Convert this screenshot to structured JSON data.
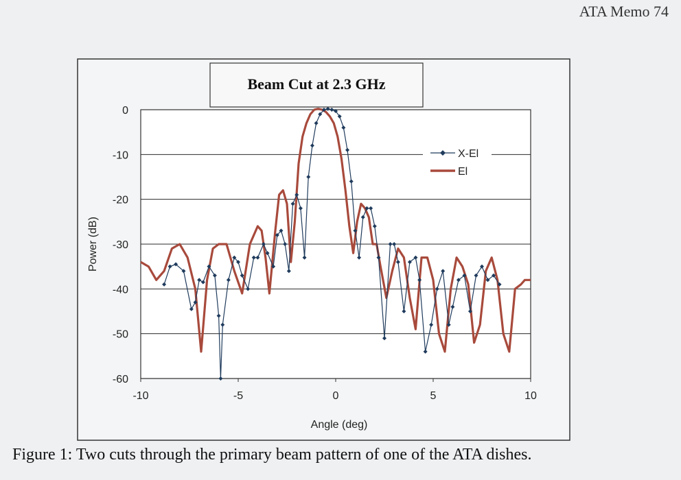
{
  "header": {
    "memo_label": "ATA Memo 74"
  },
  "caption": "Figure 1: Two cuts through the primary beam pattern of one of the ATA dishes.",
  "chart_data": {
    "type": "line",
    "title": "Beam Cut at 2.3 GHz",
    "xlabel": "Angle (deg)",
    "ylabel": "Power (dB)",
    "xlim": [
      -10,
      10
    ],
    "ylim": [
      -60,
      0
    ],
    "xticks": [
      -10,
      -5,
      0,
      5,
      10
    ],
    "yticks": [
      0,
      -10,
      -20,
      -30,
      -40,
      -50,
      -60
    ],
    "grid": "horizontal",
    "legend_position": "upper-right",
    "series": [
      {
        "name": "X-El",
        "color": "#1f3b5c",
        "marker": "diamond",
        "x": [
          -8.8,
          -8.5,
          -8.2,
          -7.8,
          -7.4,
          -7.2,
          -7.0,
          -6.8,
          -6.5,
          -6.2,
          -6.0,
          -5.9,
          -5.8,
          -5.5,
          -5.2,
          -5.0,
          -4.8,
          -4.5,
          -4.2,
          -4.0,
          -3.7,
          -3.5,
          -3.2,
          -3.0,
          -2.8,
          -2.6,
          -2.4,
          -2.2,
          -2.0,
          -1.8,
          -1.6,
          -1.4,
          -1.2,
          -1.0,
          -0.8,
          -0.6,
          -0.4,
          -0.2,
          0.0,
          0.2,
          0.4,
          0.6,
          0.8,
          1.0,
          1.2,
          1.4,
          1.6,
          1.8,
          2.0,
          2.2,
          2.5,
          2.8,
          3.0,
          3.2,
          3.5,
          3.8,
          4.1,
          4.3,
          4.6,
          4.9,
          5.2,
          5.5,
          5.8,
          6.0,
          6.3,
          6.6,
          6.9,
          7.2,
          7.5,
          7.8,
          8.1,
          8.4
        ],
        "values": [
          -39,
          -35,
          -34.5,
          -36,
          -44.5,
          -43,
          -38,
          -38.5,
          -35,
          -37,
          -46,
          -60,
          -48,
          -38,
          -33,
          -34,
          -37,
          -40,
          -33,
          -33,
          -30,
          -32,
          -35,
          -28,
          -27,
          -30,
          -36,
          -21,
          -19,
          -22,
          -33,
          -15,
          -8,
          -3,
          -1,
          0,
          0.2,
          0,
          -0.3,
          -1.5,
          -4,
          -9,
          -16,
          -27,
          -33,
          -24,
          -22,
          -22,
          -26,
          -33,
          -51,
          -30,
          -30,
          -34,
          -45,
          -34,
          -33,
          -38,
          -54,
          -48,
          -40,
          -36,
          -48,
          -44,
          -38,
          -37,
          -45,
          -37,
          -35,
          -38,
          -37,
          -39
        ]
      },
      {
        "name": "El",
        "color": "#a84a3c",
        "marker": "none",
        "x": [
          -10.0,
          -9.6,
          -9.2,
          -8.8,
          -8.4,
          -8.0,
          -7.6,
          -7.2,
          -6.9,
          -6.6,
          -6.3,
          -6.0,
          -5.6,
          -5.2,
          -4.8,
          -4.4,
          -4.0,
          -3.8,
          -3.6,
          -3.4,
          -3.1,
          -2.9,
          -2.7,
          -2.5,
          -2.3,
          -2.1,
          -1.9,
          -1.7,
          -1.5,
          -1.3,
          -1.1,
          -0.9,
          -0.7,
          -0.5,
          -0.3,
          -0.1,
          0.1,
          0.3,
          0.5,
          0.7,
          0.9,
          1.1,
          1.3,
          1.5,
          1.7,
          1.9,
          2.1,
          2.3,
          2.6,
          2.9,
          3.2,
          3.5,
          3.8,
          4.1,
          4.4,
          4.7,
          5.0,
          5.3,
          5.6,
          5.9,
          6.2,
          6.5,
          6.8,
          7.1,
          7.4,
          7.7,
          8.0,
          8.3,
          8.6,
          8.9,
          9.2,
          9.5,
          9.7,
          9.9,
          10.0
        ],
        "values": [
          -34,
          -35,
          -38,
          -36,
          -31,
          -30,
          -33,
          -40,
          -54,
          -38,
          -31,
          -30,
          -30,
          -36,
          -41,
          -30,
          -26,
          -27,
          -33,
          -41,
          -27,
          -19,
          -18,
          -21,
          -34,
          -25,
          -12,
          -6,
          -3,
          -1,
          0,
          0.2,
          0,
          -0.5,
          -1.5,
          -3,
          -6,
          -11,
          -18,
          -26,
          -32,
          -25,
          -21,
          -22,
          -24,
          -30,
          -30,
          -35,
          -42,
          -36,
          -31,
          -33,
          -42,
          -49,
          -33,
          -33,
          -38,
          -50,
          -54,
          -40,
          -33,
          -35,
          -39,
          -52,
          -48,
          -36,
          -33,
          -38,
          -50,
          -54,
          -40,
          -39,
          -38,
          -38,
          -38
        ]
      }
    ]
  }
}
